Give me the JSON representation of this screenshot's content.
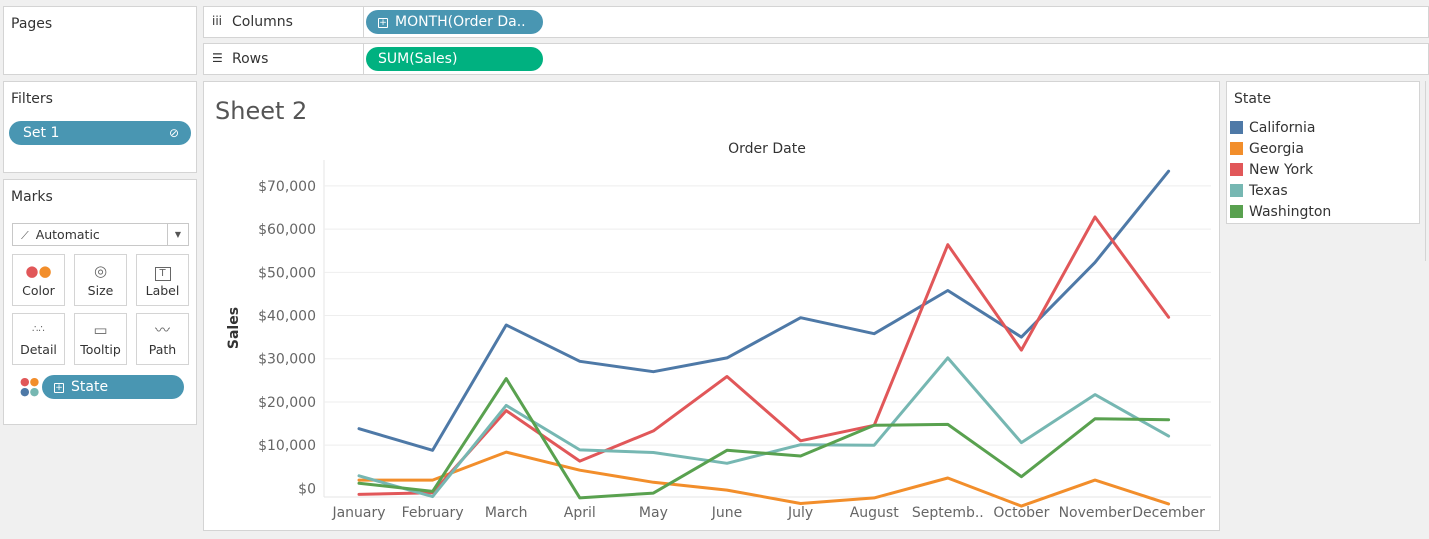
{
  "pages": {
    "title": "Pages"
  },
  "filters": {
    "title": "Filters",
    "pill": "Set 1"
  },
  "marks": {
    "title": "Marks",
    "type": "Automatic",
    "buttons": [
      {
        "label": "Color",
        "icon": "color-dots-icon"
      },
      {
        "label": "Size",
        "icon": "size-icon"
      },
      {
        "label": "Label",
        "icon": "text-label-icon"
      },
      {
        "label": "Detail",
        "icon": "detail-dots-icon"
      },
      {
        "label": "Tooltip",
        "icon": "tooltip-icon"
      },
      {
        "label": "Path",
        "icon": "path-icon"
      }
    ],
    "field": "State"
  },
  "shelves": {
    "columns": {
      "label": "Columns",
      "pill": "MONTH(Order Da.."
    },
    "rows": {
      "label": "Rows",
      "pill": "SUM(Sales)"
    }
  },
  "sheet": {
    "title": "Sheet 2"
  },
  "legend": {
    "title": "State",
    "items": [
      {
        "name": "California",
        "color": "#4e79a7"
      },
      {
        "name": "Georgia",
        "color": "#f28e2b"
      },
      {
        "name": "New York",
        "color": "#e15759"
      },
      {
        "name": "Texas",
        "color": "#76b7b2"
      },
      {
        "name": "Washington",
        "color": "#59a14f"
      }
    ]
  },
  "chart_data": {
    "type": "line",
    "title": "Order Date",
    "xlabel": "",
    "ylabel": "Sales",
    "categories": [
      "January",
      "February",
      "March",
      "April",
      "May",
      "June",
      "July",
      "August",
      "Septemb..",
      "October",
      "November",
      "December"
    ],
    "yticks": [
      "$0",
      "$10,000",
      "$20,000",
      "$30,000",
      "$40,000",
      "$50,000",
      "$60,000",
      "$70,000"
    ],
    "ylim": [
      -2000,
      76000
    ],
    "grid": true,
    "series": [
      {
        "name": "California",
        "color": "#4e79a7",
        "values": [
          13800,
          8800,
          37800,
          29400,
          27000,
          30200,
          39500,
          35800,
          45800,
          35000,
          52300,
          73400
        ]
      },
      {
        "name": "Georgia",
        "color": "#f28e2b",
        "values": [
          1900,
          1900,
          8400,
          4200,
          1400,
          -400,
          -3500,
          -2200,
          2400,
          -4100,
          1900,
          -3600
        ]
      },
      {
        "name": "New York",
        "color": "#e15759",
        "values": [
          -1400,
          -1000,
          18000,
          6300,
          13300,
          25900,
          11000,
          14600,
          56400,
          32000,
          62800,
          39600
        ]
      },
      {
        "name": "Texas",
        "color": "#76b7b2",
        "values": [
          2900,
          -1900,
          19200,
          8900,
          8300,
          5800,
          10100,
          10000,
          30200,
          10600,
          21700,
          12100
        ]
      },
      {
        "name": "Washington",
        "color": "#59a14f",
        "values": [
          1200,
          -700,
          25400,
          -2200,
          -1100,
          8800,
          7500,
          14600,
          14800,
          2700,
          16100,
          15900
        ]
      }
    ]
  }
}
